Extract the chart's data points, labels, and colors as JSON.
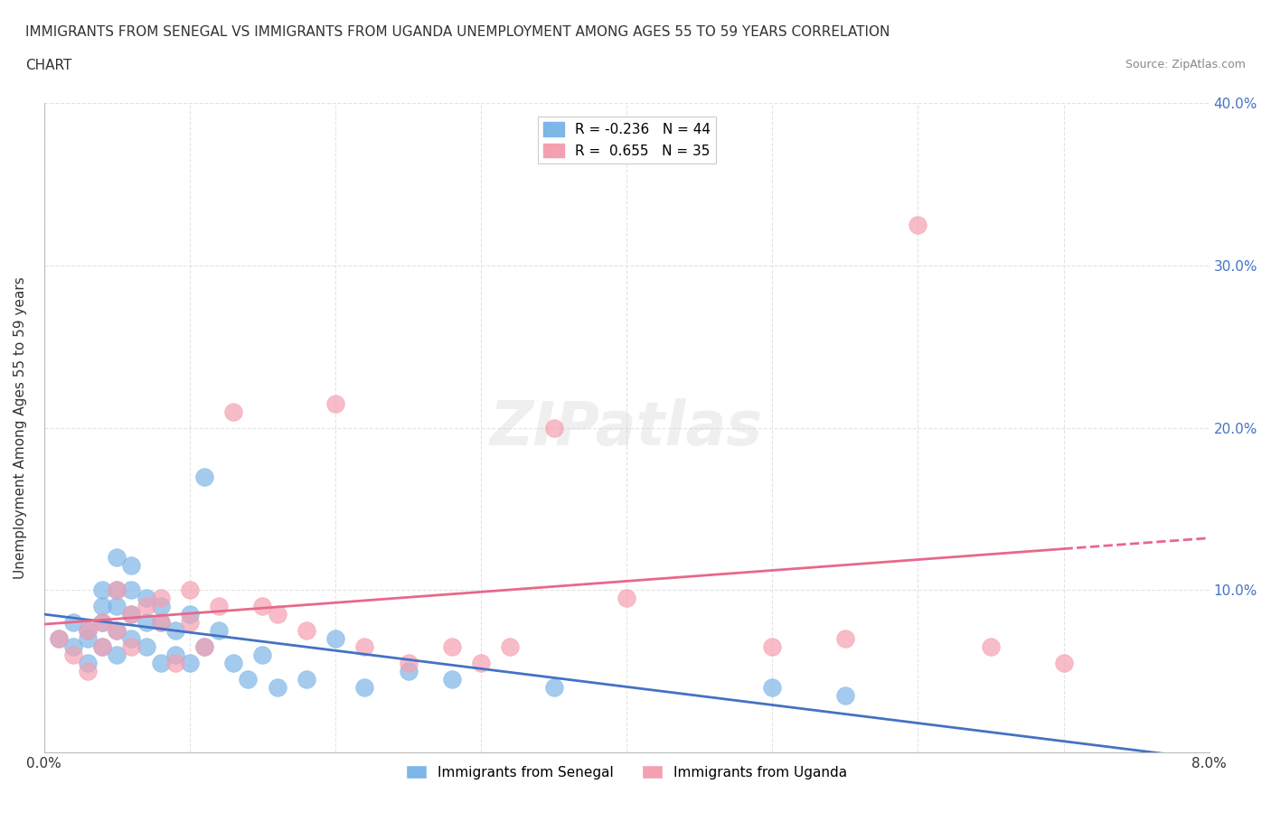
{
  "title_line1": "IMMIGRANTS FROM SENEGAL VS IMMIGRANTS FROM UGANDA UNEMPLOYMENT AMONG AGES 55 TO 59 YEARS CORRELATION",
  "title_line2": "CHART",
  "source_text": "Source: ZipAtlas.com",
  "ylabel": "Unemployment Among Ages 55 to 59 years",
  "xlim": [
    0.0,
    0.08
  ],
  "ylim": [
    0.0,
    0.4
  ],
  "xticks": [
    0.0,
    0.01,
    0.02,
    0.03,
    0.04,
    0.05,
    0.06,
    0.07,
    0.08
  ],
  "yticks": [
    0.0,
    0.1,
    0.2,
    0.3,
    0.4
  ],
  "legend_r1": "R = -0.236   N = 44",
  "legend_r2": "R =  0.655   N = 35",
  "senegal_color": "#7EB6E8",
  "uganda_color": "#F4A0B0",
  "senegal_line_color": "#4472C4",
  "uganda_line_color": "#E8688A",
  "watermark": "ZIPatlas",
  "background_color": "#FFFFFF",
  "grid_color": "#DDDDDD",
  "senegal_x": [
    0.001,
    0.002,
    0.002,
    0.003,
    0.003,
    0.003,
    0.004,
    0.004,
    0.004,
    0.004,
    0.005,
    0.005,
    0.005,
    0.005,
    0.005,
    0.006,
    0.006,
    0.006,
    0.006,
    0.007,
    0.007,
    0.007,
    0.008,
    0.008,
    0.008,
    0.009,
    0.009,
    0.01,
    0.01,
    0.011,
    0.011,
    0.012,
    0.013,
    0.014,
    0.015,
    0.016,
    0.018,
    0.02,
    0.022,
    0.025,
    0.028,
    0.035,
    0.05,
    0.055
  ],
  "senegal_y": [
    0.07,
    0.065,
    0.08,
    0.075,
    0.07,
    0.055,
    0.1,
    0.09,
    0.08,
    0.065,
    0.12,
    0.1,
    0.09,
    0.075,
    0.06,
    0.115,
    0.1,
    0.085,
    0.07,
    0.095,
    0.08,
    0.065,
    0.09,
    0.08,
    0.055,
    0.075,
    0.06,
    0.085,
    0.055,
    0.17,
    0.065,
    0.075,
    0.055,
    0.045,
    0.06,
    0.04,
    0.045,
    0.07,
    0.04,
    0.05,
    0.045,
    0.04,
    0.04,
    0.035
  ],
  "uganda_x": [
    0.001,
    0.002,
    0.003,
    0.003,
    0.004,
    0.004,
    0.005,
    0.005,
    0.006,
    0.006,
    0.007,
    0.008,
    0.008,
    0.009,
    0.01,
    0.01,
    0.011,
    0.012,
    0.013,
    0.015,
    0.016,
    0.018,
    0.02,
    0.022,
    0.025,
    0.028,
    0.03,
    0.032,
    0.035,
    0.04,
    0.05,
    0.055,
    0.06,
    0.065,
    0.07
  ],
  "uganda_y": [
    0.07,
    0.06,
    0.075,
    0.05,
    0.08,
    0.065,
    0.1,
    0.075,
    0.085,
    0.065,
    0.09,
    0.095,
    0.08,
    0.055,
    0.1,
    0.08,
    0.065,
    0.09,
    0.21,
    0.09,
    0.085,
    0.075,
    0.215,
    0.065,
    0.055,
    0.065,
    0.055,
    0.065,
    0.2,
    0.095,
    0.065,
    0.07,
    0.325,
    0.065,
    0.055
  ]
}
